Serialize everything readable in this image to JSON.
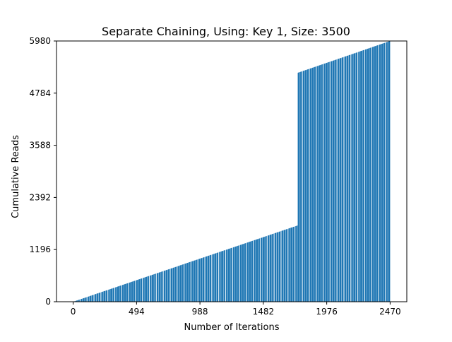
{
  "chart_data": {
    "type": "bar",
    "title": "Separate Chaining, Using: Key 1, Size: 3500",
    "xlabel": "Number of Iterations",
    "ylabel": "Cumulative Reads",
    "xlim": [
      -130,
      2600
    ],
    "ylim": [
      0,
      5980
    ],
    "xticks": [
      0,
      494,
      988,
      1482,
      1976,
      2470
    ],
    "yticks": [
      0,
      1196,
      2392,
      3588,
      4784,
      5980
    ],
    "bar_color": "#1f77b4",
    "series": [
      {
        "segments": [
          {
            "x_start": 0,
            "x_end": 1750,
            "y_start": 0,
            "y_end": 1750
          },
          {
            "x_start": 1750,
            "x_end": 2470,
            "y_start": 5250,
            "y_end": 5980
          }
        ]
      }
    ]
  }
}
